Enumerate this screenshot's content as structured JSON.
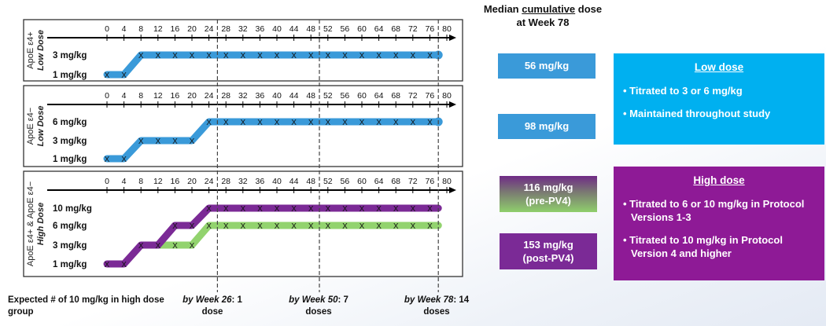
{
  "summary_title": {
    "line1_pre": "Median ",
    "line1_underlined": "cumulative",
    "line1_post": " dose",
    "line2": "at Week 78"
  },
  "weeks": [
    "0",
    "4",
    "8",
    "12",
    "16",
    "20",
    "24",
    "28",
    "32",
    "36",
    "40",
    "44",
    "48",
    "52",
    "56",
    "60",
    "64",
    "68",
    "72",
    "76",
    "80"
  ],
  "colors": {
    "blue": "#3a9ad9",
    "purple": "#7b2a96",
    "green": "#92d36e",
    "cyan": "#00b0f0",
    "box_blue": "#3a9ad9",
    "info_purple": "#8e1a96"
  },
  "panels": [
    {
      "group_line1": "ApoE ε4+",
      "group_line2": "Low Dose",
      "dose_labels": [
        "3 mg/kg",
        "1 mg/kg"
      ],
      "series": [
        {
          "name": "low-dose-e4-pos",
          "color": "#3a9ad9",
          "points": [
            [
              0,
              1
            ],
            [
              4,
              1
            ],
            [
              8,
              3
            ],
            [
              78,
              3
            ]
          ]
        }
      ]
    },
    {
      "group_line1": "ApoE ε4−",
      "group_line2": "Low Dose",
      "dose_labels": [
        "6 mg/kg",
        "3 mg/kg",
        "1 mg/kg"
      ],
      "series": [
        {
          "name": "low-dose-e4-neg",
          "color": "#3a9ad9",
          "points": [
            [
              0,
              1
            ],
            [
              4,
              1
            ],
            [
              8,
              3
            ],
            [
              20,
              3
            ],
            [
              24,
              6
            ],
            [
              78,
              6
            ]
          ]
        }
      ]
    },
    {
      "group_line1": "ApoE ε4+ & ApoE ε4−",
      "group_line2": "High Dose",
      "dose_labels": [
        "10 mg/kg",
        "6 mg/kg",
        "3 mg/kg",
        "1 mg/kg"
      ],
      "series": [
        {
          "name": "high-dose-pre-pv4",
          "color": "#92d36e",
          "points": [
            [
              12,
              3
            ],
            [
              20,
              3
            ],
            [
              24,
              6
            ],
            [
              78,
              6
            ]
          ]
        },
        {
          "name": "high-dose-post-pv4",
          "color": "#7b2a96",
          "points": [
            [
              0,
              1
            ],
            [
              4,
              1
            ],
            [
              8,
              3
            ],
            [
              12,
              3
            ],
            [
              16,
              6
            ],
            [
              20,
              6
            ],
            [
              24,
              10
            ],
            [
              78,
              10
            ]
          ]
        }
      ]
    }
  ],
  "dashed_weeks": [
    26,
    50,
    78
  ],
  "dose_boxes": [
    {
      "line1": "56 mg/kg",
      "line2": ""
    },
    {
      "line1": "98 mg/kg",
      "line2": ""
    },
    {
      "line1": "116 mg/kg",
      "line2": "(pre-PV4)"
    },
    {
      "line1": "153 mg/kg",
      "line2": "(post-PV4)"
    }
  ],
  "low_info": {
    "heading": "Low dose",
    "bullets": [
      "• Titrated to 3 or 6 mg/kg",
      "• Maintained throughout study"
    ]
  },
  "high_info": {
    "heading": "High dose",
    "bullets": [
      "• Titrated to 6 or 10 mg/kg in Protocol Versions 1-3",
      "• Titrated to 10 mg/kg in Protocol Version 4 and higher"
    ]
  },
  "footer": {
    "expected": "Expected # of 10 mg/kg in high dose group",
    "w26_by": "by ",
    "w26_week": "Week 26",
    "w26_rest": ": 1",
    "w26_line2": "dose",
    "w50_by": "by ",
    "w50_week": "Week 50",
    "w50_rest": ": 7",
    "w50_line2": "doses",
    "w78_by": "by ",
    "w78_week": "Week 78",
    "w78_rest": ": 14",
    "w78_line2": "doses"
  }
}
